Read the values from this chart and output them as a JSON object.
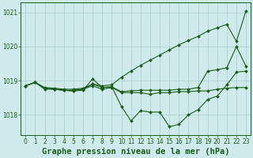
{
  "background_color": "#ceeaea",
  "grid_color": "#aacfcf",
  "line_color": "#1a5c1a",
  "title": "Graphe pression niveau de la mer (hPa)",
  "ylim": [
    1017.4,
    1021.3
  ],
  "xlim": [
    -0.5,
    23.5
  ],
  "yticks": [
    1018,
    1019,
    1020,
    1021
  ],
  "xticks": [
    0,
    1,
    2,
    3,
    4,
    5,
    6,
    7,
    8,
    9,
    10,
    11,
    12,
    13,
    14,
    15,
    16,
    17,
    18,
    19,
    20,
    21,
    22,
    23
  ],
  "series": [
    {
      "x": [
        0,
        1,
        2,
        3,
        4,
        5,
        6,
        7,
        8,
        9,
        10,
        11,
        12,
        13,
        14,
        15,
        16,
        17,
        18,
        19,
        20,
        21,
        22,
        23
      ],
      "y": [
        1018.85,
        1018.95,
        1018.75,
        1018.75,
        1018.72,
        1018.72,
        1018.75,
        1018.85,
        1018.75,
        1018.8,
        1018.65,
        1018.65,
        1018.65,
        1018.6,
        1018.65,
        1018.65,
        1018.68,
        1018.68,
        1018.7,
        1018.7,
        1018.75,
        1018.78,
        1018.8,
        1018.8
      ]
    },
    {
      "x": [
        0,
        1,
        2,
        3,
        4,
        5,
        6,
        7,
        8,
        9,
        10,
        11,
        12,
        13,
        14,
        15,
        16,
        17,
        18,
        19,
        20,
        21,
        22,
        23
      ],
      "y": [
        1018.85,
        1018.95,
        1018.8,
        1018.78,
        1018.75,
        1018.75,
        1018.78,
        1018.9,
        1018.85,
        1018.88,
        1019.1,
        1019.28,
        1019.45,
        1019.6,
        1019.75,
        1019.9,
        1020.05,
        1020.18,
        1020.3,
        1020.45,
        1020.55,
        1020.65,
        1020.15,
        1021.05
      ]
    },
    {
      "x": [
        0,
        1,
        2,
        3,
        4,
        5,
        6,
        7,
        8,
        9,
        10,
        11,
        12,
        13,
        14,
        15,
        16,
        17,
        18,
        19,
        20,
        21,
        22,
        23
      ],
      "y": [
        1018.85,
        1018.95,
        1018.78,
        1018.75,
        1018.72,
        1018.7,
        1018.72,
        1019.05,
        1018.8,
        1018.82,
        1018.25,
        1017.82,
        1018.12,
        1018.08,
        1018.08,
        1017.65,
        1017.72,
        1018.0,
        1018.15,
        1018.45,
        1018.55,
        1018.88,
        1019.25,
        1019.28
      ]
    },
    {
      "x": [
        0,
        1,
        2,
        3,
        4,
        5,
        6,
        7,
        8,
        9,
        10,
        11,
        12,
        13,
        14,
        15,
        16,
        17,
        18,
        19,
        20,
        21,
        22,
        23
      ],
      "y": [
        1018.85,
        1018.95,
        1018.78,
        1018.75,
        1018.72,
        1018.7,
        1018.75,
        1018.9,
        1018.8,
        1018.82,
        1018.68,
        1018.7,
        1018.72,
        1018.72,
        1018.72,
        1018.72,
        1018.75,
        1018.75,
        1018.8,
        1019.28,
        1019.32,
        1019.38,
        1020.0,
        1019.42
      ]
    }
  ],
  "markersize": 2.0,
  "linewidth": 0.8,
  "title_fontsize": 7.5,
  "tick_fontsize": 5.5,
  "figsize": [
    3.2,
    2.0
  ],
  "dpi": 100
}
